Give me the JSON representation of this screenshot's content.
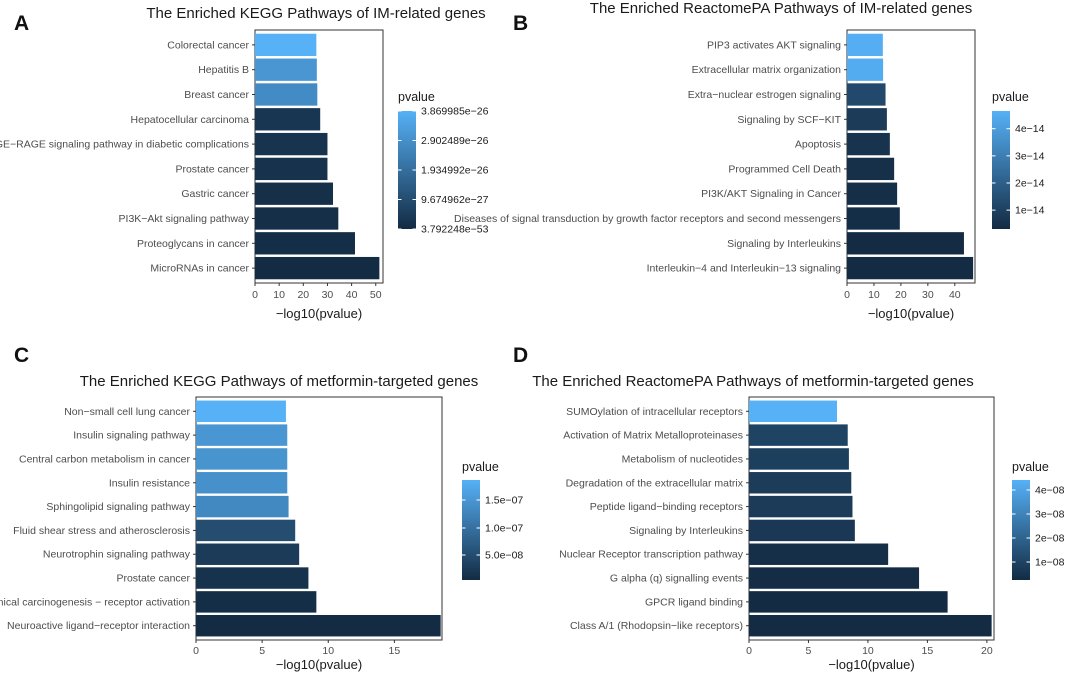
{
  "colors": {
    "low": "#132B43",
    "high": "#56B1F7",
    "axis": "#333333"
  },
  "chart_data": [
    {
      "type": "bar",
      "orientation": "horizontal",
      "panel_label": "A",
      "title": "The Enriched KEGG Pathways of IM-related genes",
      "xlabel": "−log10(pvalue)",
      "xlim": [
        0,
        53
      ],
      "xticks": [
        0,
        10,
        20,
        30,
        40,
        50
      ],
      "xtick_labels": [
        "0",
        "10",
        "20",
        "30",
        "40",
        "50"
      ],
      "categories": [
        "Colorectal cancer",
        "Hepatitis B",
        "Breast cancer",
        "Hepatocellular carcinoma",
        "AGE−RAGE signaling pathway in diabetic complications",
        "Prostate cancer",
        "Gastric cancer",
        "PI3K−Akt signaling pathway",
        "Proteoglycans in cancer",
        "MicroRNAs in cancer"
      ],
      "values": [
        25.4,
        25.6,
        25.8,
        27.0,
        30.0,
        30.0,
        32.3,
        34.5,
        41.4,
        51.5
      ],
      "color_levels": [
        1.0,
        0.8,
        0.72,
        0.08,
        0.06,
        0.05,
        0.04,
        0.03,
        0.02,
        0.0
      ],
      "legend": {
        "title": "pvalue",
        "labels": [
          "3.869985e−26",
          "2.902489e−26",
          "1.934992e−26",
          "9.674962e−27",
          "3.792248e−53"
        ],
        "levels": [
          1.0,
          0.75,
          0.5,
          0.25,
          0.0
        ]
      }
    },
    {
      "type": "bar",
      "orientation": "horizontal",
      "panel_label": "B",
      "title": "The Enriched ReactomePA Pathways of IM-related genes",
      "xlabel": "−log10(pvalue)",
      "xlim": [
        0,
        47.5
      ],
      "xticks": [
        0,
        10,
        20,
        30,
        40
      ],
      "xtick_labels": [
        "0",
        "10",
        "20",
        "30",
        "40"
      ],
      "categories": [
        "PIP3 activates AKT signaling",
        "Extracellular matrix organization",
        "Extra−nuclear estrogen signaling",
        "Signaling by SCF−KIT",
        "Apoptosis",
        "Programmed Cell Death",
        "PI3K/AKT Signaling in Cancer",
        "Diseases of signal transduction by growth factor receptors and second messengers",
        "Signaling by Interleukins",
        "Interleukin−4 and Interleukin−13 signaling"
      ],
      "values": [
        13.3,
        13.4,
        14.3,
        14.8,
        15.9,
        17.5,
        18.6,
        19.6,
        43.4,
        46.8
      ],
      "color_levels": [
        0.98,
        0.96,
        0.22,
        0.12,
        0.06,
        0.04,
        0.03,
        0.02,
        0.0,
        0.0
      ],
      "legend": {
        "title": "pvalue",
        "labels": [
          "4e−14",
          "3e−14",
          "2e−14",
          "1e−14"
        ],
        "levels": [
          0.85,
          0.62,
          0.39,
          0.16
        ]
      }
    },
    {
      "type": "bar",
      "orientation": "horizontal",
      "panel_label": "C",
      "title": "The Enriched KEGG Pathways of metformin-targeted genes",
      "xlabel": "−log10(pvalue)",
      "xlim": [
        0,
        18.6
      ],
      "xticks": [
        0,
        5,
        10,
        15
      ],
      "xtick_labels": [
        "0",
        "5",
        "10",
        "15"
      ],
      "categories": [
        "Non−small cell lung cancer",
        "Insulin signaling pathway",
        "Central carbon metabolism in cancer",
        "Insulin resistance",
        "Sphingolipid signaling pathway",
        "Fluid shear stress and atherosclerosis",
        "Neurotrophin signaling pathway",
        "Prostate cancer",
        "Chemical carcinogenesis − receptor activation",
        "Neuroactive ligand−receptor interaction"
      ],
      "values": [
        6.8,
        6.9,
        6.9,
        6.9,
        7.0,
        7.5,
        7.8,
        8.5,
        9.1,
        18.5
      ],
      "color_levels": [
        1.0,
        0.8,
        0.78,
        0.76,
        0.7,
        0.25,
        0.12,
        0.05,
        0.02,
        0.0
      ],
      "legend": {
        "title": "pvalue",
        "labels": [
          "1.5e−07",
          "1.0e−07",
          "5.0e−08"
        ],
        "levels": [
          0.8,
          0.52,
          0.25
        ]
      }
    },
    {
      "type": "bar",
      "orientation": "horizontal",
      "panel_label": "D",
      "title": "The Enriched ReactomePA Pathways of metformin-targeted genes",
      "xlabel": "−log10(pvalue)",
      "xlim": [
        0,
        20.6
      ],
      "xticks": [
        0,
        5,
        10,
        15,
        20
      ],
      "xtick_labels": [
        "0",
        "5",
        "10",
        "15",
        "20"
      ],
      "categories": [
        "SUMOylation of intracellular receptors",
        "Activation of Matrix Metalloproteinases",
        "Metabolism of nucleotides",
        "Degradation of the extracellular matrix",
        "Peptide ligand−binding receptors",
        "Signaling by Interleukins",
        "Nuclear Receptor transcription pathway",
        "G alpha (q) signalling events",
        "GPCR ligand binding",
        "Class A/1 (Rhodopsin−like receptors)"
      ],
      "values": [
        7.4,
        8.3,
        8.4,
        8.6,
        8.7,
        8.9,
        11.7,
        14.3,
        16.7,
        20.4
      ],
      "color_levels": [
        1.0,
        0.18,
        0.15,
        0.13,
        0.12,
        0.1,
        0.03,
        0.01,
        0.0,
        0.0
      ],
      "legend": {
        "title": "pvalue",
        "labels": [
          "4e−08",
          "3e−08",
          "2e−08",
          "1e−08"
        ],
        "levels": [
          0.9,
          0.66,
          0.42,
          0.18
        ]
      }
    }
  ]
}
